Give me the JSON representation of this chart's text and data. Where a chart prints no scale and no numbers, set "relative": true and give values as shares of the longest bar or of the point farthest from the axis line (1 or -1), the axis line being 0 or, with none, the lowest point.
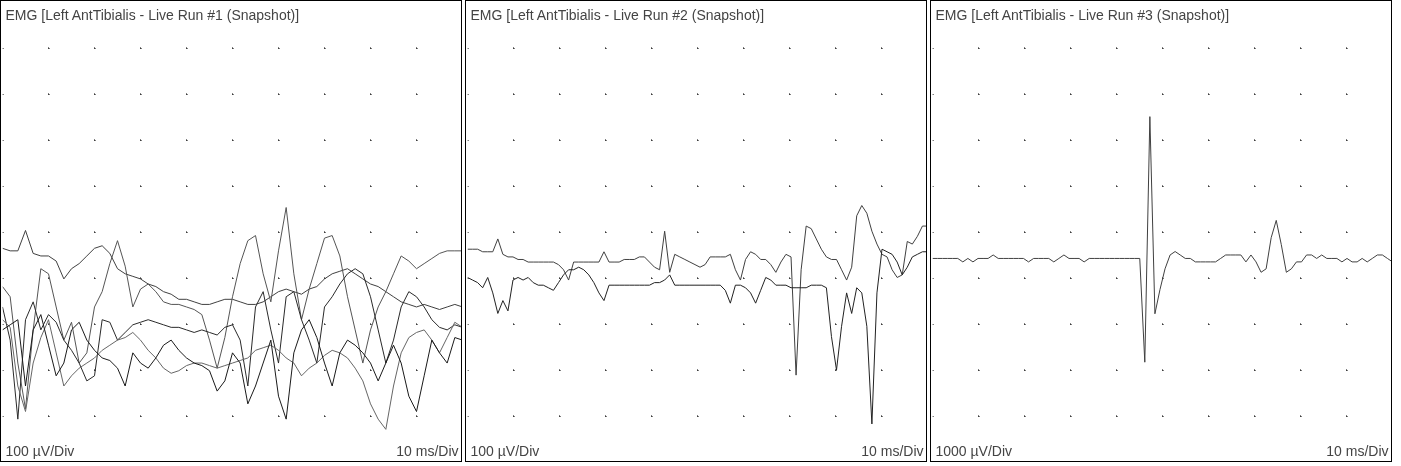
{
  "chart_data": [
    {
      "type": "line",
      "title": "EMG [Left AntTibialis - Live Run #1 (Snapshot)]",
      "annotations": [
        "100 µV/Div",
        "10 ms/Div"
      ],
      "relative": true,
      "grid": true,
      "categories": [
        null,
        null,
        null,
        null,
        null,
        null,
        null,
        null,
        null,
        null,
        null,
        null,
        null,
        null,
        null,
        null,
        null,
        null,
        null,
        null,
        null,
        null,
        null,
        null,
        null,
        null,
        null,
        null,
        null,
        null,
        null,
        null,
        null,
        null,
        null,
        null,
        null,
        null,
        null,
        null,
        null,
        null,
        null,
        null,
        null,
        null,
        null,
        null,
        null,
        null,
        null,
        null,
        null,
        null,
        null,
        null,
        null,
        null,
        null,
        null,
        null
      ],
      "series": [
        {
          "color": "#404040",
          "values": [
            0.84,
            0.83,
            0.83,
            0.91,
            0.82,
            0.81,
            0.81,
            0.79,
            0.72,
            0.76,
            0.78,
            0.81,
            0.84,
            0.85,
            0.82,
            0.76,
            0.74,
            0.73,
            0.72,
            0.7,
            0.69,
            0.67,
            0.66,
            0.64,
            0.64,
            0.63,
            0.62,
            0.62,
            0.63,
            0.64,
            0.64,
            0.63,
            0.62,
            0.62,
            0.63,
            0.65,
            0.67,
            0.68,
            0.67,
            0.66,
            0.68,
            0.69,
            0.72,
            0.74,
            0.75,
            0.76,
            0.74,
            0.72,
            0.7,
            0.69,
            0.67,
            0.65,
            0.63,
            0.62,
            0.61,
            0.62,
            0.61,
            0.6,
            0.61,
            0.62,
            0.61
          ]
        },
        {
          "color": "#555555",
          "values": [
            0.69,
            0.65,
            0.39,
            0.21,
            0.52,
            0.76,
            0.74,
            0.61,
            0.48,
            0.55,
            0.39,
            0.43,
            0.61,
            0.67,
            0.78,
            0.87,
            0.77,
            0.61,
            0.68,
            0.7,
            0.67,
            0.63,
            0.62,
            0.62,
            0.61,
            0.6,
            0.58,
            0.48,
            0.37,
            0.49,
            0.65,
            0.78,
            0.87,
            0.89,
            0.74,
            0.63,
            0.83,
            1.0,
            0.74,
            0.56,
            0.68,
            0.78,
            0.88,
            0.89,
            0.81,
            0.65,
            0.52,
            0.39,
            0.52,
            0.61,
            0.67,
            0.74,
            0.81,
            0.79,
            0.76,
            0.78,
            0.8,
            0.82,
            0.83,
            0.83,
            0.83
          ]
        },
        {
          "color": "#2a2a2a",
          "values": [
            0.61,
            0.48,
            0.17,
            0.56,
            0.63,
            0.52,
            0.58,
            0.55,
            0.48,
            0.44,
            0.39,
            0.32,
            0.34,
            0.56,
            0.55,
            0.48,
            0.51,
            0.54,
            0.55,
            0.56,
            0.55,
            0.54,
            0.53,
            0.53,
            0.52,
            0.51,
            0.52,
            0.51,
            0.5,
            0.53,
            0.54,
            0.48,
            0.3,
            0.61,
            0.67,
            0.52,
            0.39,
            0.65,
            0.67,
            0.56,
            0.48,
            0.39,
            0.61,
            0.65,
            0.7,
            0.74,
            0.76,
            0.74,
            0.65,
            0.52,
            0.39,
            0.48,
            0.61,
            0.67,
            0.65,
            0.61,
            0.56,
            0.53,
            0.52,
            0.54,
            0.53
          ]
        },
        {
          "color": "#666666",
          "values": [
            0.56,
            0.53,
            0.3,
            0.2,
            0.39,
            0.49,
            0.56,
            0.43,
            0.3,
            0.34,
            0.37,
            0.39,
            0.41,
            0.44,
            0.46,
            0.48,
            0.49,
            0.51,
            0.48,
            0.44,
            0.41,
            0.37,
            0.35,
            0.36,
            0.38,
            0.39,
            0.39,
            0.38,
            0.37,
            0.38,
            0.39,
            0.4,
            0.41,
            0.44,
            0.45,
            0.46,
            0.44,
            0.41,
            0.39,
            0.34,
            0.37,
            0.39,
            0.42,
            0.44,
            0.43,
            0.41,
            0.37,
            0.32,
            0.23,
            0.17,
            0.13,
            0.3,
            0.43,
            0.49,
            0.51,
            0.52,
            0.48,
            0.43,
            0.49,
            0.55,
            0.53
          ]
        },
        {
          "color": "#1a1a1a",
          "values": [
            0.52,
            0.54,
            0.56,
            0.3,
            0.52,
            0.58,
            0.46,
            0.34,
            0.39,
            0.52,
            0.55,
            0.48,
            0.44,
            0.41,
            0.4,
            0.37,
            0.3,
            0.43,
            0.39,
            0.37,
            0.41,
            0.46,
            0.48,
            0.44,
            0.41,
            0.39,
            0.38,
            0.36,
            0.28,
            0.32,
            0.43,
            0.39,
            0.23,
            0.3,
            0.39,
            0.48,
            0.26,
            0.17,
            0.43,
            0.52,
            0.56,
            0.49,
            0.39,
            0.3,
            0.43,
            0.48,
            0.46,
            0.43,
            0.39,
            0.32,
            0.39,
            0.46,
            0.39,
            0.26,
            0.2,
            0.34,
            0.48,
            0.43,
            0.39,
            0.49,
            0.48
          ]
        }
      ]
    },
    {
      "type": "line",
      "title": "EMG [Left AntTibialis - Live Run #2 (Snapshot)]",
      "annotations": [
        "100 µV/Div",
        "10 ms/Div"
      ],
      "relative": true,
      "grid": true,
      "categories": [
        null,
        null,
        null,
        null,
        null,
        null,
        null,
        null,
        null,
        null,
        null,
        null,
        null,
        null,
        null,
        null,
        null,
        null,
        null,
        null,
        null,
        null,
        null,
        null,
        null,
        null,
        null,
        null,
        null,
        null,
        null,
        null,
        null,
        null,
        null,
        null,
        null,
        null,
        null,
        null,
        null,
        null,
        null,
        null,
        null,
        null,
        null,
        null,
        null,
        null,
        null,
        null,
        null,
        null,
        null,
        null,
        null,
        null,
        null,
        null,
        null,
        null,
        null,
        null,
        null,
        null,
        null,
        null,
        null,
        null,
        null,
        null,
        null,
        null,
        null,
        null,
        null,
        null,
        null,
        null,
        null,
        null,
        null,
        null,
        null,
        null,
        null,
        null,
        null,
        null,
        null,
        null
      ],
      "series": [
        {
          "color": "#404040",
          "values": [
            0.83,
            0.83,
            0.83,
            0.82,
            0.82,
            0.82,
            0.87,
            0.81,
            0.8,
            0.8,
            0.79,
            0.79,
            0.78,
            0.78,
            0.78,
            0.78,
            0.78,
            0.78,
            0.77,
            0.75,
            0.71,
            0.78,
            0.78,
            0.78,
            0.78,
            0.78,
            0.78,
            0.82,
            0.78,
            0.78,
            0.78,
            0.79,
            0.79,
            0.79,
            0.8,
            0.8,
            0.78,
            0.76,
            0.75,
            0.9,
            0.74,
            0.81,
            0.8,
            0.79,
            0.78,
            0.77,
            0.76,
            0.77,
            0.8,
            0.8,
            0.8,
            0.8,
            0.81,
            0.75,
            0.71,
            0.79,
            0.82,
            0.81,
            0.79,
            0.79,
            0.77,
            0.74,
            0.78,
            0.81,
            0.8,
            0.34,
            0.75,
            0.92,
            0.91,
            0.87,
            0.83,
            0.8,
            0.79,
            0.79,
            0.75,
            0.71,
            0.76,
            0.96,
            1.0,
            0.97,
            0.9,
            0.85,
            0.81,
            0.8,
            0.75,
            0.72,
            0.73,
            0.86,
            0.85,
            0.88,
            0.92,
            0.92
          ]
        },
        {
          "color": "#222222",
          "values": [
            0.72,
            0.71,
            0.7,
            0.68,
            0.72,
            0.66,
            0.58,
            0.63,
            0.59,
            0.71,
            0.72,
            0.71,
            0.72,
            0.7,
            0.69,
            0.69,
            0.68,
            0.67,
            0.7,
            0.73,
            0.75,
            0.75,
            0.76,
            0.75,
            0.73,
            0.7,
            0.66,
            0.63,
            0.69,
            0.69,
            0.69,
            0.69,
            0.69,
            0.69,
            0.69,
            0.69,
            0.69,
            0.7,
            0.7,
            0.71,
            0.73,
            0.69,
            0.69,
            0.69,
            0.69,
            0.69,
            0.69,
            0.69,
            0.69,
            0.69,
            0.69,
            0.67,
            0.62,
            0.69,
            0.69,
            0.68,
            0.66,
            0.62,
            0.67,
            0.72,
            0.71,
            0.69,
            0.69,
            0.69,
            0.68,
            0.68,
            0.68,
            0.68,
            0.69,
            0.69,
            0.69,
            0.68,
            0.49,
            0.36,
            0.53,
            0.66,
            0.58,
            0.68,
            0.66,
            0.53,
            0.15,
            0.66,
            0.83,
            0.82,
            0.81,
            0.78,
            0.73,
            0.76,
            0.8,
            0.81,
            0.82,
            0.82
          ]
        }
      ]
    },
    {
      "type": "line",
      "title": "EMG [Left AntTibialis - Live Run #3 (Snapshot)]",
      "annotations": [
        "1000 µV/Div",
        "10 ms/Div"
      ],
      "relative": true,
      "grid": true,
      "categories": [
        null,
        null,
        null,
        null,
        null,
        null,
        null,
        null,
        null,
        null,
        null,
        null,
        null,
        null,
        null,
        null,
        null,
        null,
        null,
        null,
        null,
        null,
        null,
        null,
        null,
        null,
        null,
        null,
        null,
        null,
        null,
        null,
        null,
        null,
        null,
        null,
        null,
        null,
        null,
        null,
        null,
        null,
        null,
        null,
        null,
        null,
        null,
        null,
        null,
        null,
        null,
        null,
        null,
        null,
        null,
        null,
        null,
        null,
        null,
        null,
        null,
        null,
        null,
        null,
        null,
        null,
        null,
        null,
        null,
        null,
        null,
        null,
        null,
        null,
        null,
        null,
        null,
        null,
        null,
        null,
        null,
        null,
        null,
        null,
        null,
        null,
        null,
        null,
        null,
        null,
        null,
        null
      ],
      "series": [
        {
          "color": "#404040",
          "values": [
            0.59,
            0.59,
            0.59,
            0.59,
            0.59,
            0.59,
            0.58,
            0.59,
            0.58,
            0.59,
            0.59,
            0.59,
            0.6,
            0.59,
            0.59,
            0.59,
            0.59,
            0.59,
            0.59,
            0.58,
            0.59,
            0.59,
            0.59,
            0.59,
            0.58,
            0.59,
            0.6,
            0.59,
            0.59,
            0.59,
            0.58,
            0.59,
            0.59,
            0.59,
            0.59,
            0.59,
            0.59,
            0.59,
            0.59,
            0.59,
            0.59,
            0.59,
            0.29,
            1,
            0.43,
            0.5,
            0.56,
            0.6,
            0.61,
            0.6,
            0.59,
            0.59,
            0.58,
            0.58,
            0.58,
            0.58,
            0.58,
            0.59,
            0.6,
            0.6,
            0.6,
            0.6,
            0.58,
            0.6,
            0.58,
            0.55,
            0.56,
            0.65,
            0.7,
            0.63,
            0.55,
            0.56,
            0.58,
            0.58,
            0.6,
            0.6,
            0.59,
            0.6,
            0.59,
            0.59,
            0.59,
            0.58,
            0.59,
            0.58,
            0.58,
            0.59,
            0.58,
            0.59,
            0.6,
            0.6,
            0.59,
            0.58
          ]
        }
      ]
    }
  ]
}
